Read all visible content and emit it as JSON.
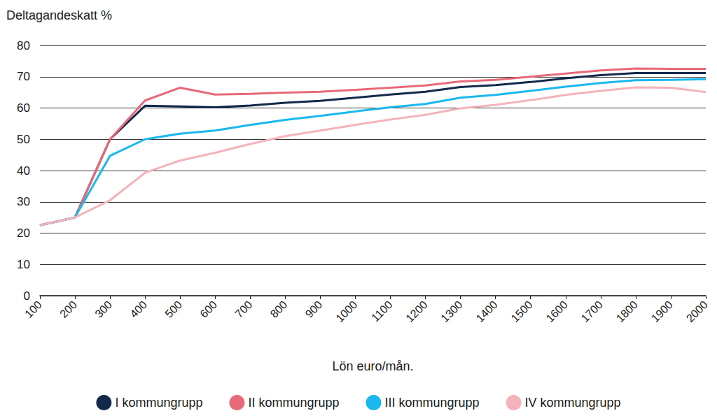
{
  "chart_data": {
    "type": "line",
    "y_label": "Deltagandeskatt %",
    "x_label": "Lön euro/mån.",
    "categories": [
      "100",
      "200",
      "300",
      "400",
      "500",
      "600",
      "700",
      "800",
      "900",
      "1000",
      "1100",
      "1200",
      "1300",
      "1400",
      "1500",
      "1600",
      "1700",
      "1800",
      "1900",
      "2000"
    ],
    "series": [
      {
        "name": "I kommungrupp",
        "color": "#14284b",
        "values": [
          22.5,
          25,
          50,
          60.7,
          60.5,
          60.2,
          60.8,
          61.7,
          62.3,
          63.3,
          64.3,
          65.2,
          66.7,
          67.3,
          68.3,
          69.5,
          70.5,
          71.2,
          71.2,
          71.2
        ]
      },
      {
        "name": "II kommungrupp",
        "color": "#e8697a",
        "values": [
          22.5,
          25,
          50,
          62.4,
          66.5,
          64.3,
          64.5,
          64.9,
          65.2,
          65.8,
          66.5,
          67.2,
          68.5,
          69,
          70,
          71,
          72,
          72.6,
          72.5,
          72.5
        ]
      },
      {
        "name": "III kommungrupp",
        "color": "#1ab8ef",
        "values": [
          22.5,
          25,
          44.7,
          50,
          51.8,
          52.8,
          54.6,
          56.2,
          57.5,
          58.9,
          60.2,
          61.3,
          63.3,
          64.2,
          65.5,
          66.8,
          68,
          68.9,
          69,
          69.2
        ]
      },
      {
        "name": "IV kommungrupp",
        "color": "#f4b3ba",
        "values": [
          22.5,
          25,
          30.5,
          39.3,
          43.2,
          45.7,
          48.5,
          51,
          52.8,
          54.6,
          56.3,
          57.8,
          59.9,
          61,
          62.5,
          64.2,
          65.5,
          66.6,
          66.5,
          65.1
        ]
      }
    ],
    "ylim": [
      0,
      80
    ],
    "yticks": [
      0,
      10,
      20,
      30,
      40,
      50,
      60,
      70,
      80
    ],
    "grid": true,
    "legend": "bottom"
  }
}
